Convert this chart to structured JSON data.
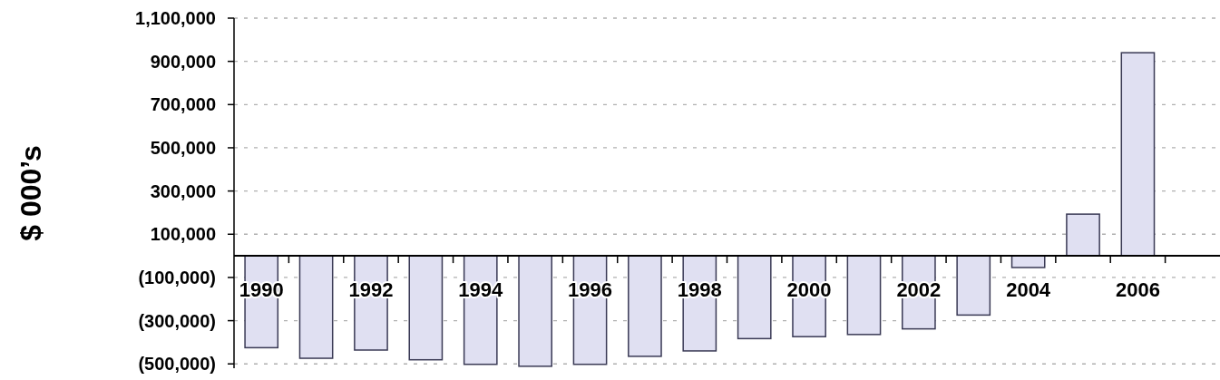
{
  "chart_data": {
    "type": "bar",
    "ylabel": "$ 000’s",
    "categories": [
      "1990",
      null,
      "1992",
      null,
      "1994",
      null,
      "1996",
      null,
      "1998",
      null,
      "2000",
      null,
      "2002",
      null,
      "2004",
      null,
      "2006",
      null
    ],
    "values": [
      -425000,
      -474000,
      -436000,
      -481000,
      -502000,
      -511000,
      -502000,
      -465000,
      -440000,
      -383000,
      -374000,
      -364000,
      -338000,
      -274000,
      -54000,
      193000,
      940000,
      null
    ],
    "color": "#e0e0f2",
    "ylim": [
      -520000,
      1100000
    ],
    "yticks": [
      {
        "value": -500000,
        "label": "(500,000)"
      },
      {
        "value": -300000,
        "label": "(300,000)"
      },
      {
        "value": -100000,
        "label": "(100,000)"
      },
      {
        "value": 100000,
        "label": "100,000"
      },
      {
        "value": 300000,
        "label": "300,000"
      },
      {
        "value": 500000,
        "label": "500,000"
      },
      {
        "value": 700000,
        "label": "700,000"
      },
      {
        "value": 900000,
        "label": "900,000"
      },
      {
        "value": 1100000,
        "label": "1,100,000"
      }
    ],
    "grid": "y"
  }
}
